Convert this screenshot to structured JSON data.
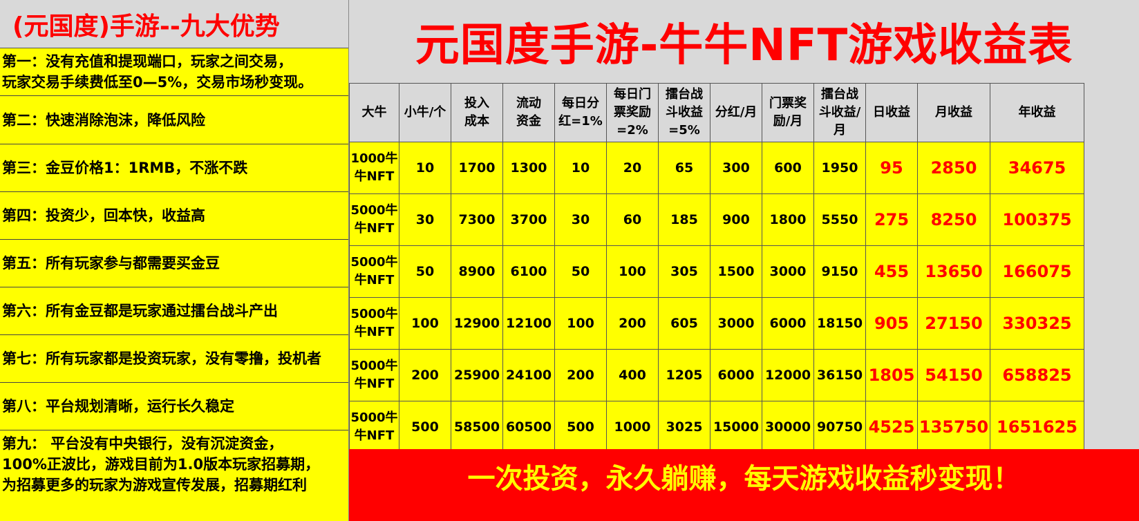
{
  "left_panel": {
    "title": "(元国度)手游--九大优势",
    "advantages": [
      "第一：没有充值和提现端口，玩家之间交易，\n玩家交易手续费低至0—5%，交易市场秒变现。",
      "第二：快速消除泡沫，降低风险",
      "第三：金豆价格1：1RMB，不涨不跌",
      "第四：投资少，回本快，收益高",
      "第五：所有玩家参与都需要买金豆",
      "第六：所有金豆都是玩家通过擂台战斗产出",
      "第七：所有玩家都是投资玩家，没有零撸，投机者",
      "第八：平台规划清晰，运行长久稳定",
      "第九： 平台没有中央银行，没有沉淀资金，\n100%正波比，游戏目前为1.0版本玩家招募期，\n为招募更多的玩家为游戏宣传发展，招募期红利"
    ]
  },
  "main_title": "元国度手游-牛牛NFT游戏收益表",
  "table": {
    "headers": [
      "大牛",
      "小牛/个",
      "投入\n成本",
      "流动\n资金",
      "每日分\n红=1%",
      "每日门\n票奖励\n=2%",
      "擂台战\n斗收益\n=5%",
      "分红/月",
      "门票奖\n励/月",
      "擂台战\n斗收益/\n月",
      "日收益",
      "月收益",
      "年收益"
    ],
    "rows": [
      [
        "1000牛\n牛NFT",
        "10",
        "1700",
        "1300",
        "10",
        "20",
        "65",
        "300",
        "600",
        "1950",
        "95",
        "2850",
        "34675"
      ],
      [
        "5000牛\n牛NFT",
        "30",
        "7300",
        "3700",
        "30",
        "60",
        "185",
        "900",
        "1800",
        "5550",
        "275",
        "8250",
        "100375"
      ],
      [
        "5000牛\n牛NFT",
        "50",
        "8900",
        "6100",
        "50",
        "100",
        "305",
        "1500",
        "3000",
        "9150",
        "455",
        "13650",
        "166075"
      ],
      [
        "5000牛\n牛NFT",
        "100",
        "12900",
        "12100",
        "100",
        "200",
        "605",
        "3000",
        "6000",
        "18150",
        "905",
        "27150",
        "330325"
      ],
      [
        "5000牛\n牛NFT",
        "200",
        "25900",
        "24100",
        "200",
        "400",
        "1205",
        "6000",
        "12000",
        "36150",
        "1805",
        "54150",
        "658825"
      ],
      [
        "5000牛\n牛NFT",
        "500",
        "58500",
        "60500",
        "500",
        "1000",
        "3025",
        "15000",
        "30000",
        "90750",
        "4525",
        "135750",
        "1651625"
      ]
    ]
  },
  "banner": "一次投资，永久躺赚，每天游戏收益秒变现！",
  "colors": {
    "title_red": "#ff0000",
    "cell_yellow": "#ffff00",
    "header_gray": "#d9d9d9"
  }
}
